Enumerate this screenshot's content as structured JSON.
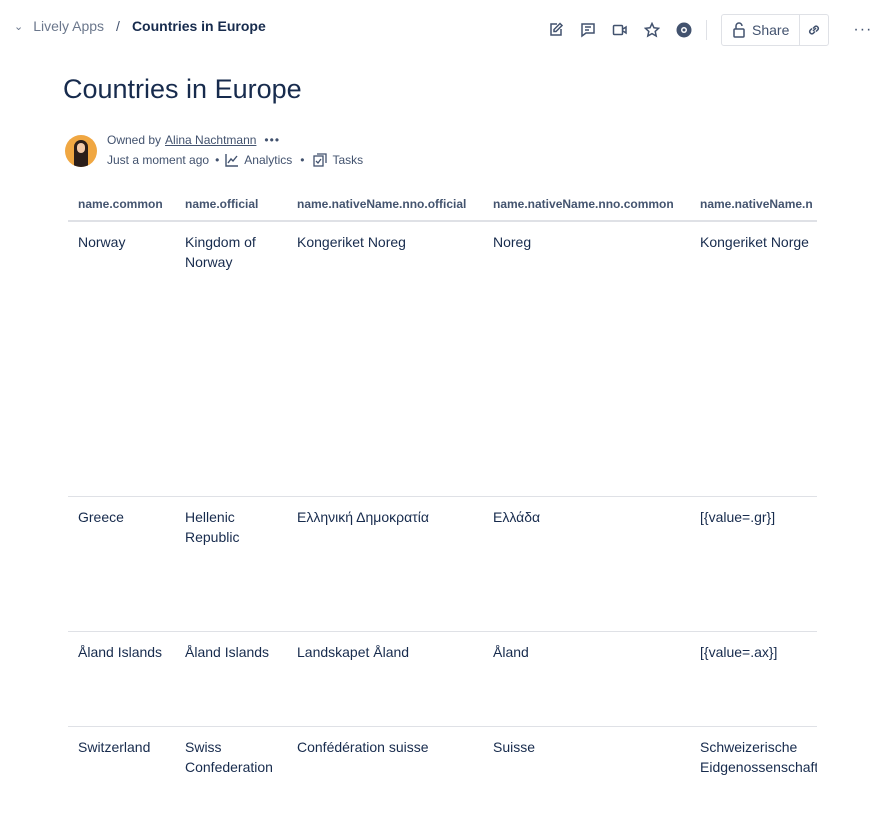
{
  "breadcrumb": {
    "space": "Lively Apps",
    "separator": "/",
    "current": "Countries in Europe"
  },
  "toolbar": {
    "icons": [
      "edit-icon",
      "comment-icon",
      "video-icon",
      "star-icon",
      "watch-icon"
    ],
    "share_label": "Share"
  },
  "page": {
    "title": "Countries in Europe",
    "owned_by_label": "Owned by",
    "owner": "Alina Nachtmann",
    "updated": "Just a moment ago",
    "analytics": "Analytics",
    "tasks": "Tasks"
  },
  "table": {
    "headers": [
      "name.common",
      "name.official",
      "name.nativeName.nno.official",
      "name.nativeName.nno.common",
      "name.nativeName.n"
    ],
    "rows": [
      [
        "Norway",
        "Kingdom of Norway",
        "Kongeriket Noreg",
        "Noreg",
        "Kongeriket Norge"
      ],
      [
        "Greece",
        "Hellenic Republic",
        "Ελληνική Δημοκρατία",
        "Ελλάδα",
        "[{value=.gr}]"
      ],
      [
        "Åland Islands",
        "Åland Islands",
        "Landskapet Åland",
        "Åland",
        "[{value=.ax}]"
      ],
      [
        "Switzerland",
        "Swiss Confederation",
        "Confédération suisse",
        "Suisse",
        "Schweizerische Eidgenossenschaft"
      ]
    ]
  }
}
